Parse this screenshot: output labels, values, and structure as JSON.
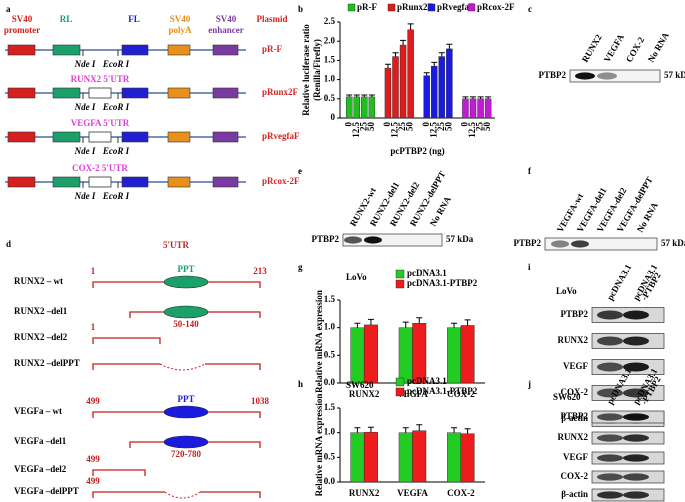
{
  "figure": {
    "panel_labels": [
      "a",
      "b",
      "c",
      "d",
      "e",
      "f",
      "g",
      "h",
      "i",
      "j"
    ]
  },
  "a": {
    "elements": [
      {
        "lines": [
          "SV40",
          "promoter"
        ],
        "color": "#d62020"
      },
      {
        "lines": [
          "RL"
        ],
        "color": "#1aa068"
      },
      {
        "lines": [
          "FL"
        ],
        "color": "#2020d0"
      },
      {
        "lines": [
          "SV40",
          "polyA"
        ],
        "color": "#e8901a"
      },
      {
        "lines": [
          "SV40",
          "enhancer"
        ],
        "color": "#7a3aa0"
      },
      {
        "lines": [
          "Plasmid"
        ],
        "color": "#d62020"
      }
    ],
    "sites": [
      "Nde I",
      "EcoR I"
    ],
    "utr_color": "#e03ad8",
    "constructs": [
      {
        "name": "pR-F"
      },
      {
        "name": "pRunx2F",
        "utr": "RUNX2 5'UTR"
      },
      {
        "name": "pRvegfaF",
        "utr": "VEGFA 5'UTR"
      },
      {
        "name": "pRcox-2F",
        "utr": "COX-2 5'UTR"
      }
    ]
  },
  "c": {
    "lanes": [
      [
        "RUNX2"
      ],
      [
        "VEGFA"
      ],
      [
        "COX-2"
      ],
      [
        "No RNA"
      ]
    ],
    "rows": [
      "PTBP2"
    ],
    "size": "57 kDa"
  },
  "d": {
    "header": "5'UTR",
    "rows": [
      {
        "label": "RUNX2 – wt",
        "start": "1",
        "end": "213",
        "domain": "PPT"
      },
      {
        "label": "RUNX2 –del1",
        "range": "50-140"
      },
      {
        "label": "RUNX2 –del2",
        "start": "1"
      },
      {
        "label": "RUNX2 –delPPT"
      },
      {
        "label": "VEGFa – wt",
        "start": "499",
        "end": "1038",
        "domain": "PPT"
      },
      {
        "label": "VEGFa –del1",
        "range": "720-780"
      },
      {
        "label": "VEGFa –del2",
        "start": "499"
      },
      {
        "label": "VEGFa –delPPT",
        "start": "499"
      }
    ]
  },
  "e": {
    "lanes": [
      [
        "RUNX2-wt"
      ],
      [
        "RUNX2-del1"
      ],
      [
        "RUNX2-del2"
      ],
      [
        "RUNX2-delPPT"
      ],
      [
        "No RNA"
      ]
    ],
    "rows": [
      "PTBP2"
    ],
    "size": "57 kDa"
  },
  "f": {
    "lanes": [
      [
        "VEGFA-wt"
      ],
      [
        "VEGFA-del1"
      ],
      [
        "VEGFA-del2"
      ],
      [
        "VEGFA-delPPT"
      ],
      [
        "No RNA"
      ]
    ],
    "rows": [
      "PTBP2"
    ],
    "size": "57 kDa"
  },
  "i": {
    "cell": "LoVo",
    "lanes": [
      [
        "pcDNA3.1"
      ],
      [
        "pcDNA3.1",
        "-PTBP2"
      ]
    ],
    "rows": [
      "PTBP2",
      "RUNX2",
      "VEGF",
      "COX-2",
      "β-actin"
    ]
  },
  "j": {
    "cell": "SW620",
    "lanes": [
      [
        "pcDNA3.1"
      ],
      [
        "pcDNA3.1",
        "-PTBP2"
      ]
    ],
    "rows": [
      "PTBP2",
      "RUNX2",
      "VEGF",
      "COX-2",
      "β-actin"
    ]
  },
  "chart_data": [
    {
      "type": "bar",
      "y_label": [
        "Relative luciferase ratio",
        "(Renilla/Firefly)"
      ],
      "x_label": "pcPTBP2 (ng)",
      "categories": [
        "0",
        "12.5",
        "25",
        "50"
      ],
      "series": [
        {
          "name": "pR-F",
          "color": "#1fbf1f",
          "values": [
            0.55,
            0.55,
            0.55,
            0.55
          ],
          "errors": [
            0.05,
            0.05,
            0.05,
            0.05
          ]
        },
        {
          "name": "pRunx2F",
          "color": "#e01b1b",
          "values": [
            1.3,
            1.6,
            1.9,
            2.3
          ],
          "errors": [
            0.1,
            0.1,
            0.12,
            0.15
          ]
        },
        {
          "name": "pRvegfaF",
          "color": "#1b1be0",
          "values": [
            1.1,
            1.35,
            1.6,
            1.8
          ],
          "errors": [
            0.08,
            0.1,
            0.1,
            0.12
          ]
        },
        {
          "name": "pRcox-2F",
          "color": "#c21bd6",
          "values": [
            0.5,
            0.5,
            0.5,
            0.5
          ],
          "errors": [
            0.05,
            0.05,
            0.05,
            0.05
          ]
        }
      ],
      "ylim": [
        0,
        2.5
      ],
      "yticks": [
        0,
        0.5,
        {
          "value": 1,
          "label": "1.0"
        },
        1.5,
        {
          "value": 2,
          "label": "2.0"
        },
        2.5
      ]
    },
    {
      "type": "bar",
      "title": "LoVo",
      "y_label": [
        "Relative mRNA expression"
      ],
      "categories": [
        "RUNX2",
        "VEGFA",
        "COX-2"
      ],
      "series": [
        {
          "name": "pcDNA3.1",
          "color": "#22cc22",
          "values": [
            1.0,
            1.0,
            1.0
          ],
          "errors": [
            0.08,
            0.1,
            0.08
          ]
        },
        {
          "name": "pcDNA3.1-PTBP2",
          "color": "#ee1c1c",
          "values": [
            1.05,
            1.08,
            1.04
          ],
          "errors": [
            0.1,
            0.1,
            0.1
          ]
        }
      ],
      "ylim": [
        0,
        1.5
      ],
      "yticks": [
        {
          "value": 0,
          "label": "0.0"
        },
        0.5,
        {
          "value": 1,
          "label": "1.0"
        },
        {
          "value": 1.5,
          "label": "1.5"
        }
      ]
    },
    {
      "type": "bar",
      "title": "SW620",
      "y_label": [
        "Relative mRNA expression"
      ],
      "categories": [
        "RUNX2",
        "VEGFA",
        "COX-2"
      ],
      "series": [
        {
          "name": "pcDNA3.1",
          "color": "#22cc22",
          "values": [
            1.0,
            1.0,
            1.0
          ],
          "errors": [
            0.1,
            0.1,
            0.1
          ]
        },
        {
          "name": "pcDNA3.1-PTBP2",
          "color": "#ee1c1c",
          "values": [
            1.01,
            1.04,
            0.98
          ],
          "errors": [
            0.1,
            0.12,
            0.1
          ]
        }
      ],
      "ylim": [
        0,
        1.5
      ],
      "yticks": [
        {
          "value": 0,
          "label": "0.0"
        },
        0.5,
        {
          "value": 1,
          "label": "1.0"
        },
        {
          "value": 1.5,
          "label": "1.5"
        }
      ]
    }
  ]
}
